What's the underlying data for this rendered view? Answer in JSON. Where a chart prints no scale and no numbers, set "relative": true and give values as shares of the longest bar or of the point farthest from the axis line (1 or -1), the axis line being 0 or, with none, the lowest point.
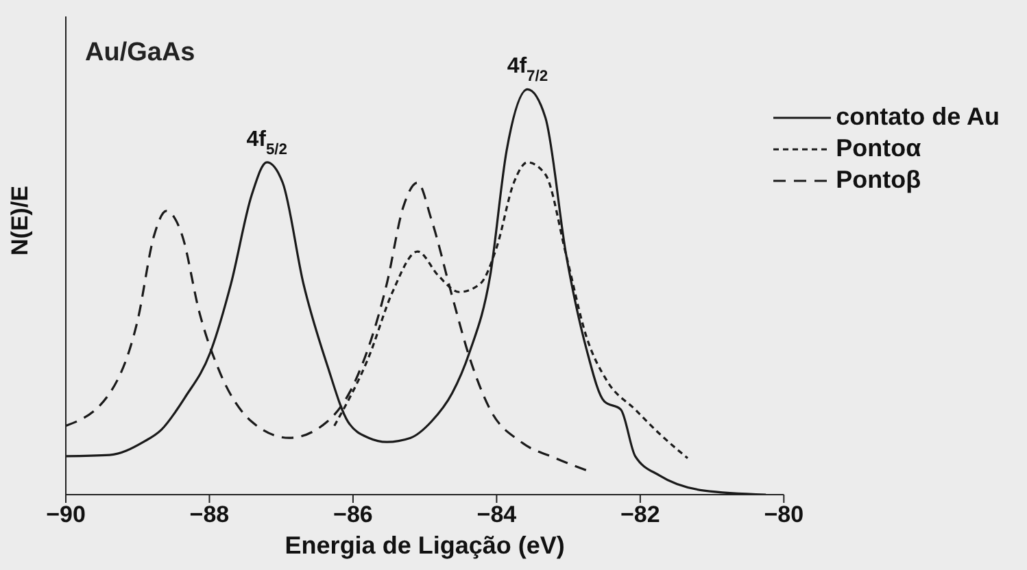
{
  "chart_data": {
    "type": "line",
    "relative": true,
    "xlabel": "Energia de Ligação (eV)",
    "ylabel": "N(E)/E",
    "xlim": [
      -90,
      -80
    ],
    "xticks": [
      -90,
      -88,
      -86,
      -84,
      -82,
      -80
    ],
    "annotations": [
      "Au/GaAs",
      {
        "text": "4f$_{5/2}$",
        "x": -87.2,
        "y": 0.82
      },
      {
        "text": "4f$_{7/2}$",
        "x": -83.57,
        "y": 1.0
      }
    ],
    "legend": "top right",
    "grid": false,
    "series": [
      {
        "name": "contato de Au",
        "color": "#1a1a1a",
        "line_style": "solid",
        "x": [
          -90,
          -89.39,
          -88.92,
          -88.67,
          -88.34,
          -87.99,
          -87.7,
          -87.41,
          -87.2,
          -86.98,
          -86.69,
          -86.36,
          -86.07,
          -85.78,
          -85.53,
          -85.2,
          -84.91,
          -84.62,
          -84.38,
          -84.09,
          -83.86,
          -83.57,
          -83.32,
          -83.03,
          -82.75,
          -82.5,
          -82.27,
          -82.07,
          -81.73,
          -81.11,
          -80.25
        ],
        "values": [
          0.095,
          0.098,
          0.13,
          0.16,
          0.24,
          0.35,
          0.52,
          0.74,
          0.82,
          0.77,
          0.52,
          0.32,
          0.18,
          0.14,
          0.13,
          0.14,
          0.18,
          0.25,
          0.35,
          0.54,
          0.85,
          1.0,
          0.93,
          0.59,
          0.36,
          0.23,
          0.21,
          0.095,
          0.047,
          0.01,
          0
        ]
      },
      {
        "name": "Pontoα",
        "color": "#1a1a1a",
        "line_style": "dotted",
        "x": [
          -86.26,
          -85.78,
          -85.45,
          -85.1,
          -84.81,
          -84.52,
          -84.23,
          -84.0,
          -83.76,
          -83.57,
          -83.32,
          -83.03,
          -82.75,
          -82.46,
          -82.07,
          -81.73,
          -81.34
        ],
        "values": [
          0.17,
          0.34,
          0.5,
          0.6,
          0.54,
          0.5,
          0.52,
          0.61,
          0.77,
          0.82,
          0.79,
          0.59,
          0.39,
          0.28,
          0.21,
          0.15,
          0.09
        ]
      },
      {
        "name": "Pontoβ",
        "color": "#1a1a1a",
        "line_style": "dashed",
        "x": [
          -90,
          -89.39,
          -89.0,
          -88.77,
          -88.6,
          -88.38,
          -88.14,
          -87.85,
          -87.41,
          -86.89,
          -86.36,
          -85.97,
          -85.53,
          -85.3,
          -85.1,
          -84.91,
          -84.62,
          -84.38,
          -84.09,
          -83.66,
          -83.18,
          -82.75
        ],
        "values": [
          0.17,
          0.25,
          0.43,
          0.64,
          0.7,
          0.64,
          0.45,
          0.3,
          0.18,
          0.14,
          0.18,
          0.28,
          0.52,
          0.71,
          0.77,
          0.68,
          0.49,
          0.34,
          0.21,
          0.13,
          0.09,
          0.06
        ]
      }
    ]
  }
}
